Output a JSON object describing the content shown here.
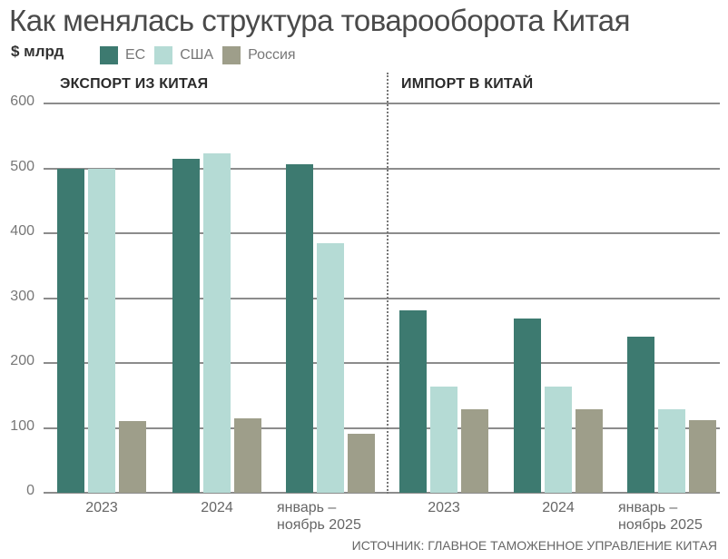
{
  "header": {
    "title": "Как менялась структура товарооборота Китая",
    "unit": "$ млрд"
  },
  "legend": [
    {
      "label": "ЕС",
      "color": "#3d7a70"
    },
    {
      "label": "США",
      "color": "#b5dbd5"
    },
    {
      "label": "Россия",
      "color": "#9e9e8a"
    }
  ],
  "sections": {
    "export": "ЭКСПОРТ ИЗ КИТАЯ",
    "import": "ИМПОРТ В КИТАЙ"
  },
  "y_ticks": [
    "600",
    "500",
    "400",
    "300",
    "200",
    "100",
    "0"
  ],
  "x_labels": {
    "export": [
      {
        "line1": "2023",
        "line2": ""
      },
      {
        "line1": "2024",
        "line2": ""
      },
      {
        "line1": "январь –",
        "line2": "ноябрь 2025"
      }
    ],
    "import": [
      {
        "line1": "2023",
        "line2": ""
      },
      {
        "line1": "2024",
        "line2": ""
      },
      {
        "line1": "январь –",
        "line2": "ноябрь 2025"
      }
    ]
  },
  "source": "ИСТОЧНИК: ГЛАВНОЕ ТАМОЖЕННОЕ УПРАВЛЕНИЕ КИТАЯ",
  "chart_data": [
    {
      "type": "bar",
      "title": "ЭКСПОРТ ИЗ КИТАЯ",
      "categories": [
        "2023",
        "2024",
        "январь – ноябрь 2025"
      ],
      "series": [
        {
          "name": "ЕС",
          "color": "#3d7a70",
          "values": [
            500,
            515,
            507
          ]
        },
        {
          "name": "США",
          "color": "#b5dbd5",
          "values": [
            500,
            524,
            385
          ]
        },
        {
          "name": "Россия",
          "color": "#9e9e8a",
          "values": [
            111,
            115,
            91
          ]
        }
      ],
      "xlabel": "",
      "ylabel": "$ млрд",
      "ylim": [
        0,
        600
      ],
      "yticks": [
        0,
        100,
        200,
        300,
        400,
        500,
        600
      ],
      "grid": true,
      "legend_position": "top"
    },
    {
      "type": "bar",
      "title": "ИМПОРТ В КИТАЙ",
      "categories": [
        "2023",
        "2024",
        "январь – ноябрь 2025"
      ],
      "series": [
        {
          "name": "ЕС",
          "color": "#3d7a70",
          "values": [
            281,
            269,
            241
          ]
        },
        {
          "name": "США",
          "color": "#b5dbd5",
          "values": [
            164,
            164,
            129
          ]
        },
        {
          "name": "Россия",
          "color": "#9e9e8a",
          "values": [
            129,
            129,
            112
          ]
        }
      ],
      "xlabel": "",
      "ylabel": "$ млрд",
      "ylim": [
        0,
        600
      ],
      "yticks": [
        0,
        100,
        200,
        300,
        400,
        500,
        600
      ],
      "grid": true,
      "legend_position": "top"
    }
  ]
}
